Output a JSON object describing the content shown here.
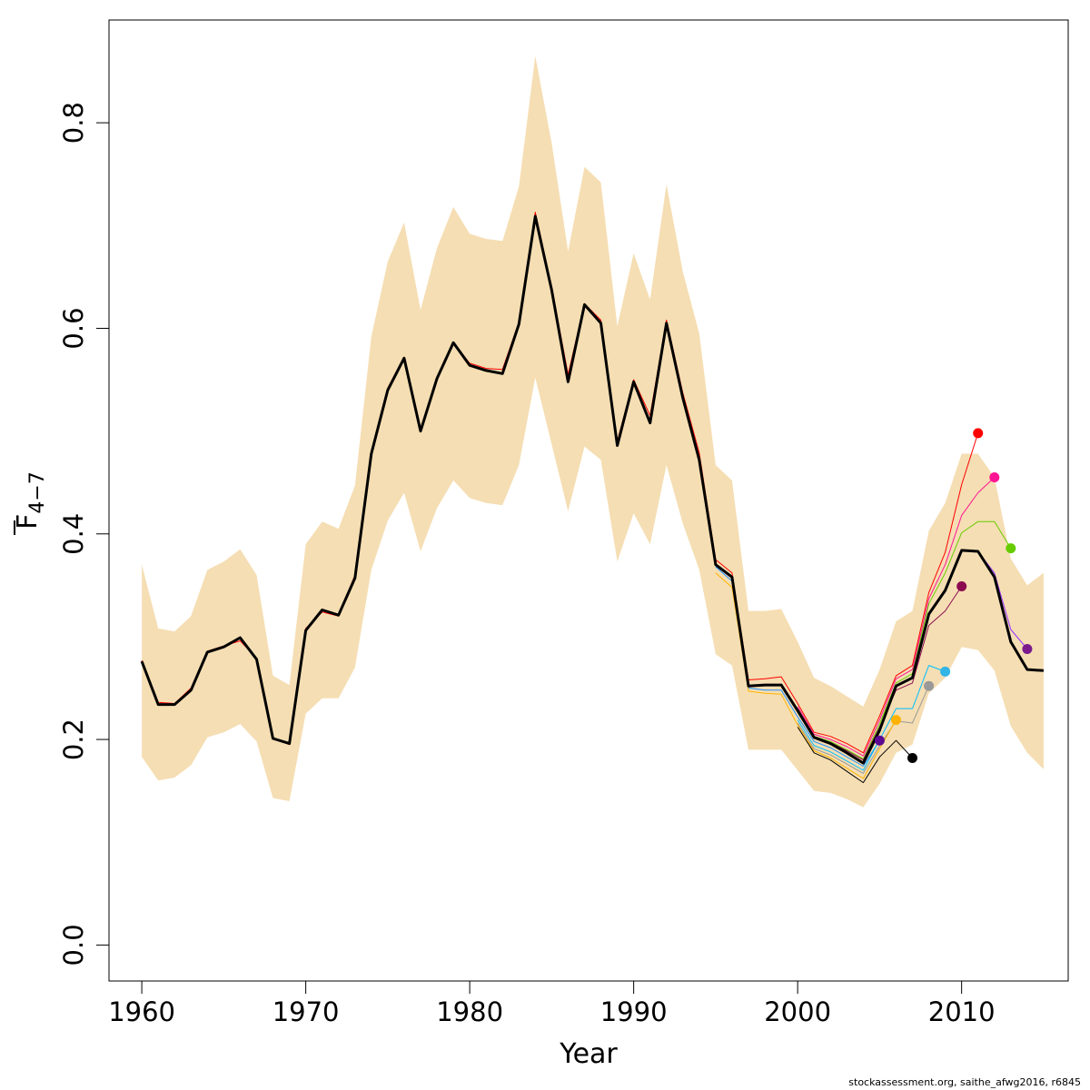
{
  "chart_data": {
    "type": "line",
    "xlabel": "Year",
    "ylabel": "F",
    "ylabel_subscript": "4−7",
    "xlim": [
      1958,
      2016.5
    ],
    "ylim": [
      -0.035,
      0.9
    ],
    "x_ticks": [
      1960,
      1970,
      1980,
      1990,
      2000,
      2010
    ],
    "y_ticks": [
      0.0,
      0.2,
      0.4,
      0.6,
      0.8
    ],
    "y_tick_labels": [
      "0.0",
      "0.2",
      "0.4",
      "0.6",
      "0.8"
    ],
    "grid": false,
    "legend": "none",
    "colors": {
      "band": "#f5deb3",
      "main_line": "#000000"
    },
    "confidence_band": {
      "years": [
        1960,
        1961,
        1962,
        1963,
        1964,
        1965,
        1966,
        1967,
        1968,
        1969,
        1970,
        1971,
        1972,
        1973,
        1974,
        1975,
        1976,
        1977,
        1978,
        1979,
        1980,
        1981,
        1982,
        1983,
        1984,
        1985,
        1986,
        1987,
        1988,
        1989,
        1990,
        1991,
        1992,
        1993,
        1994,
        1995,
        1996,
        1997,
        1998,
        1999,
        2000,
        2001,
        2002,
        2003,
        2004,
        2005,
        2006,
        2007,
        2008,
        2009,
        2010,
        2011,
        2012,
        2013,
        2014,
        2015
      ],
      "upper": [
        0.37,
        0.308,
        0.305,
        0.32,
        0.365,
        0.373,
        0.385,
        0.36,
        0.262,
        0.253,
        0.39,
        0.412,
        0.405,
        0.447,
        0.592,
        0.665,
        0.703,
        0.618,
        0.678,
        0.718,
        0.692,
        0.687,
        0.685,
        0.738,
        0.865,
        0.78,
        0.675,
        0.757,
        0.742,
        0.602,
        0.673,
        0.628,
        0.74,
        0.655,
        0.595,
        0.467,
        0.452,
        0.325,
        0.325,
        0.327,
        0.295,
        0.26,
        0.252,
        0.242,
        0.232,
        0.268,
        0.315,
        0.325,
        0.403,
        0.43,
        0.478,
        0.478,
        0.455,
        0.376,
        0.35,
        0.362
      ],
      "lower": [
        0.183,
        0.16,
        0.163,
        0.175,
        0.202,
        0.207,
        0.215,
        0.198,
        0.143,
        0.14,
        0.225,
        0.24,
        0.24,
        0.27,
        0.365,
        0.413,
        0.44,
        0.383,
        0.425,
        0.452,
        0.435,
        0.43,
        0.428,
        0.467,
        0.552,
        0.487,
        0.422,
        0.485,
        0.472,
        0.373,
        0.42,
        0.39,
        0.467,
        0.41,
        0.365,
        0.283,
        0.272,
        0.19,
        0.19,
        0.19,
        0.17,
        0.15,
        0.148,
        0.142,
        0.134,
        0.157,
        0.187,
        0.195,
        0.245,
        0.26,
        0.29,
        0.287,
        0.267,
        0.213,
        0.187,
        0.171
      ]
    },
    "series": [
      {
        "color": "#000000",
        "width": 3,
        "x": [
          1960,
          1961,
          1962,
          1963,
          1964,
          1965,
          1966,
          1967,
          1968,
          1969,
          1970,
          1971,
          1972,
          1973,
          1974,
          1975,
          1976,
          1977,
          1978,
          1979,
          1980,
          1981,
          1982,
          1983,
          1984,
          1985,
          1986,
          1987,
          1988,
          1989,
          1990,
          1991,
          1992,
          1993,
          1994,
          1995,
          1996,
          1997,
          1998,
          1999,
          2000,
          2001,
          2002,
          2003,
          2004,
          2005,
          2006,
          2007,
          2008,
          2009,
          2010,
          2011,
          2012,
          2013,
          2014,
          2015
        ],
        "y": [
          0.276,
          0.234,
          0.234,
          0.248,
          0.285,
          0.29,
          0.299,
          0.278,
          0.201,
          0.196,
          0.306,
          0.326,
          0.321,
          0.357,
          0.478,
          0.54,
          0.571,
          0.5,
          0.551,
          0.586,
          0.564,
          0.559,
          0.556,
          0.604,
          0.709,
          0.637,
          0.548,
          0.623,
          0.605,
          0.486,
          0.548,
          0.508,
          0.605,
          0.532,
          0.472,
          0.37,
          0.358,
          0.252,
          0.253,
          0.253,
          0.228,
          0.202,
          0.196,
          0.187,
          0.177,
          0.209,
          0.252,
          0.26,
          0.322,
          0.345,
          0.384,
          0.383,
          0.358,
          0.295,
          0.268,
          0.267
        ]
      },
      {
        "color": "#ff0000",
        "width": 1,
        "x": [
          1960,
          1961,
          1962,
          1963,
          1964,
          1965,
          1966,
          1967,
          1968,
          1969,
          1970,
          1971,
          1972,
          1973,
          1974,
          1975,
          1976,
          1977,
          1978,
          1979,
          1980,
          1981,
          1982,
          1983,
          1984,
          1985,
          1986,
          1987,
          1988,
          1989,
          1990,
          1991,
          1992,
          1993,
          1994,
          1995,
          1996,
          1997,
          1998,
          1999,
          2000,
          2001,
          2002,
          2003,
          2004,
          2005,
          2006,
          2007,
          2008,
          2009,
          2010,
          2011
        ],
        "y": [
          0.277,
          0.236,
          0.235,
          0.25,
          0.286,
          0.291,
          0.296,
          0.279,
          0.202,
          0.195,
          0.308,
          0.324,
          0.32,
          0.36,
          0.48,
          0.542,
          0.572,
          0.5,
          0.552,
          0.586,
          0.566,
          0.561,
          0.56,
          0.606,
          0.713,
          0.64,
          0.555,
          0.624,
          0.608,
          0.49,
          0.55,
          0.515,
          0.608,
          0.537,
          0.479,
          0.375,
          0.362,
          0.258,
          0.259,
          0.261,
          0.235,
          0.207,
          0.203,
          0.196,
          0.187,
          0.223,
          0.262,
          0.272,
          0.343,
          0.382,
          0.448,
          0.498
        ]
      },
      {
        "color": "#ff1493",
        "width": 1,
        "x": [
          2000,
          2001,
          2002,
          2003,
          2004,
          2005,
          2006,
          2007,
          2008,
          2009,
          2010,
          2011,
          2012
        ],
        "y": [
          0.232,
          0.205,
          0.2,
          0.193,
          0.184,
          0.219,
          0.259,
          0.268,
          0.337,
          0.37,
          0.418,
          0.44,
          0.455
        ]
      },
      {
        "color": "#66cc00",
        "width": 1,
        "x": [
          2000,
          2001,
          2002,
          2003,
          2004,
          2005,
          2006,
          2007,
          2008,
          2009,
          2010,
          2011,
          2012,
          2013
        ],
        "y": [
          0.23,
          0.203,
          0.198,
          0.19,
          0.181,
          0.215,
          0.255,
          0.264,
          0.332,
          0.362,
          0.401,
          0.412,
          0.412,
          0.386
        ]
      },
      {
        "color": "#8b0a50",
        "width": 1,
        "x": [
          2000,
          2001,
          2002,
          2003,
          2004,
          2005,
          2006,
          2007,
          2008,
          2009,
          2010
        ],
        "y": [
          0.23,
          0.203,
          0.197,
          0.189,
          0.18,
          0.212,
          0.248,
          0.255,
          0.311,
          0.325,
          0.349
        ]
      },
      {
        "color": "#9b30ff",
        "width": 1,
        "x": [
          2010,
          2011,
          2012,
          2013,
          2014
        ],
        "y": [
          0.384,
          0.383,
          0.362,
          0.307,
          0.288
        ]
      },
      {
        "color": "#1e90ff",
        "width": 1,
        "x": [
          1995,
          1996,
          1997,
          1998,
          1999,
          2000,
          2001,
          2002,
          2003,
          2004,
          2005
        ],
        "y": [
          0.368,
          0.354,
          0.25,
          0.248,
          0.248,
          0.222,
          0.198,
          0.192,
          0.183,
          0.174,
          0.199
        ]
      },
      {
        "color": "#00bfff",
        "width": 1,
        "x": [
          2000,
          2001,
          2002,
          2003,
          2004,
          2005,
          2006,
          2007,
          2008,
          2009
        ],
        "y": [
          0.219,
          0.194,
          0.188,
          0.179,
          0.17,
          0.2,
          0.23,
          0.23,
          0.272,
          0.266
        ]
      },
      {
        "color": "#999999",
        "width": 1,
        "x": [
          2000,
          2001,
          2002,
          2003,
          2004,
          2005,
          2006,
          2007,
          2008
        ],
        "y": [
          0.216,
          0.191,
          0.185,
          0.176,
          0.167,
          0.194,
          0.218,
          0.216,
          0.252
        ]
      },
      {
        "color": "#ffb300",
        "width": 1,
        "x": [
          1995,
          1996,
          1997,
          1998,
          1999,
          2000,
          2001,
          2002,
          2003,
          2004,
          2005,
          2006
        ],
        "y": [
          0.362,
          0.348,
          0.247,
          0.245,
          0.244,
          0.214,
          0.189,
          0.182,
          0.172,
          0.162,
          0.191,
          0.219
        ]
      },
      {
        "color": "#000000",
        "width": 1,
        "x": [
          2000,
          2001,
          2002,
          2003,
          2004,
          2005,
          2006,
          2007
        ],
        "y": [
          0.212,
          0.187,
          0.18,
          0.169,
          0.158,
          0.183,
          0.199,
          0.182
        ]
      }
    ],
    "endpoints": [
      {
        "x": 2005,
        "y": 0.199,
        "color": "#5b0a91"
      },
      {
        "x": 2006,
        "y": 0.219,
        "color": "#ffb300"
      },
      {
        "x": 2007,
        "y": 0.182,
        "color": "#000000"
      },
      {
        "x": 2008,
        "y": 0.252,
        "color": "#999999"
      },
      {
        "x": 2009,
        "y": 0.266,
        "color": "#33b5e5"
      },
      {
        "x": 2010,
        "y": 0.349,
        "color": "#8b0a50"
      },
      {
        "x": 2011,
        "y": 0.498,
        "color": "#ff0000"
      },
      {
        "x": 2012,
        "y": 0.455,
        "color": "#ff1493"
      },
      {
        "x": 2013,
        "y": 0.386,
        "color": "#66cc00"
      },
      {
        "x": 2014,
        "y": 0.288,
        "color": "#7a1a8c"
      }
    ]
  },
  "footer": {
    "credit": "stockassessment.org, saithe_afwg2016, r6845"
  }
}
